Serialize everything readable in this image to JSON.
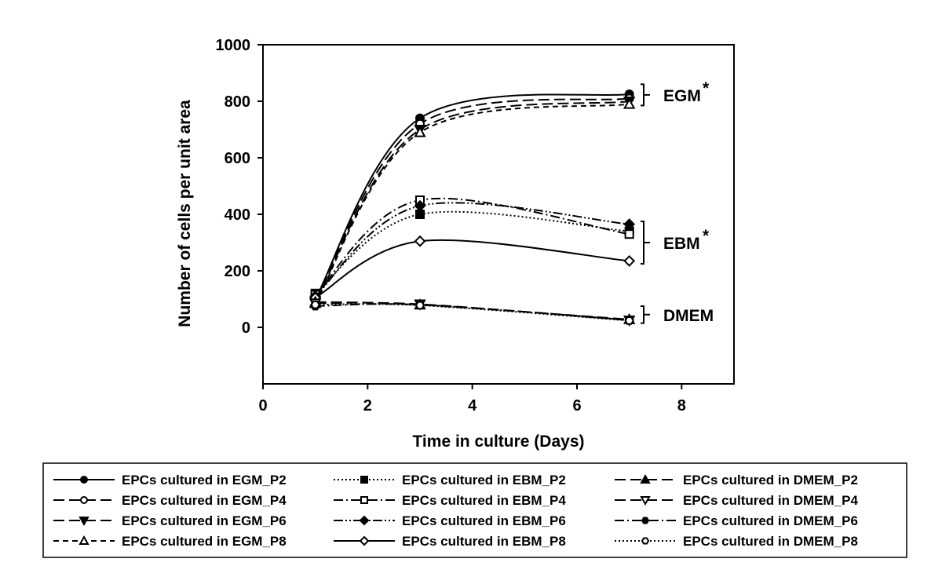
{
  "chart_data": {
    "type": "line",
    "xlabel": "Time in culture (Days)",
    "ylabel": "Number of cells per unit area",
    "xlim": [
      0,
      9
    ],
    "ylim": [
      -200,
      1000
    ],
    "x_ticks": [
      "0",
      "2",
      "4",
      "6",
      "8"
    ],
    "y_ticks": [
      "0",
      "200",
      "400",
      "600",
      "800",
      "1000"
    ],
    "grid": false,
    "legend_position": "bottom",
    "x": [
      1,
      3,
      7
    ],
    "series": [
      {
        "name": "EPCs cultured in EGM_P2",
        "values": [
          100,
          740,
          825
        ],
        "dash": "solid",
        "marker": "circle",
        "fill": true
      },
      {
        "name": "EPCs cultured in EGM_P4",
        "values": [
          95,
          720,
          810
        ],
        "dash": "longdash",
        "marker": "circle",
        "fill": false
      },
      {
        "name": "EPCs cultured in EGM_P6",
        "values": [
          90,
          700,
          800
        ],
        "dash": "longdash",
        "marker": "triangle-down",
        "fill": true
      },
      {
        "name": "EPCs cultured in EGM_P8",
        "values": [
          85,
          690,
          790
        ],
        "dash": "shortdash",
        "marker": "triangle-up",
        "fill": false
      },
      {
        "name": "EPCs cultured in EBM_P2",
        "values": [
          120,
          400,
          340
        ],
        "dash": "dotted",
        "marker": "square",
        "fill": true
      },
      {
        "name": "EPCs cultured in EBM_P4",
        "values": [
          115,
          450,
          330
        ],
        "dash": "dashdot",
        "marker": "square",
        "fill": false
      },
      {
        "name": "EPCs cultured in EBM_P6",
        "values": [
          110,
          430,
          365
        ],
        "dash": "dashdotdot",
        "marker": "diamond",
        "fill": true
      },
      {
        "name": "EPCs cultured in EBM_P8",
        "values": [
          105,
          305,
          235
        ],
        "dash": "solid",
        "marker": "diamond",
        "fill": false
      },
      {
        "name": "EPCs cultured in DMEM_P2",
        "values": [
          90,
          80,
          28
        ],
        "dash": "longdash",
        "marker": "triangle-up",
        "fill": true
      },
      {
        "name": "EPCs cultured in DMEM_P4",
        "values": [
          85,
          82,
          25
        ],
        "dash": "longdash",
        "marker": "triangle-down",
        "fill": false
      },
      {
        "name": "EPCs cultured in DMEM_P6",
        "values": [
          75,
          80,
          26
        ],
        "dash": "dashdot",
        "marker": "hexagon",
        "fill": true
      },
      {
        "name": "EPCs cultured in DMEM_P8",
        "values": [
          80,
          78,
          24
        ],
        "dash": "dotted",
        "marker": "hexagon",
        "fill": false
      }
    ],
    "group_labels": [
      {
        "text": "EGM",
        "star": "*",
        "range": [
          785,
          860
        ]
      },
      {
        "text": "EBM",
        "star": "*",
        "range": [
          225,
          375
        ]
      },
      {
        "text": "DMEM",
        "star": "",
        "range": [
          15,
          75
        ]
      }
    ]
  }
}
